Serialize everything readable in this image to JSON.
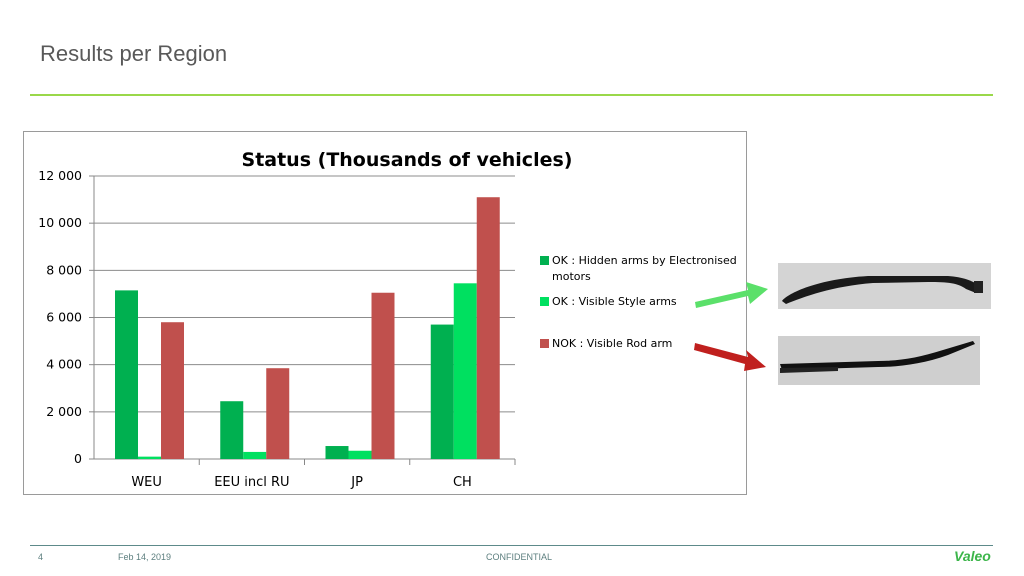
{
  "slide": {
    "title": "Results per Region",
    "page_number": "4",
    "date": "Feb 14, 2019",
    "confidentiality": "CONFIDENTIAL",
    "logo_text": "Valeo",
    "accent_color": "#9ad84a"
  },
  "chart_data": {
    "type": "bar",
    "title": "Status (Thousands of vehicles)",
    "categories": [
      "WEU",
      "EEU incl RU",
      "JP",
      "CH"
    ],
    "ylim": [
      0,
      12000
    ],
    "yticks": [
      "0",
      "2 000",
      "4 000",
      "6 000",
      "8 000",
      "10 000",
      "12 000"
    ],
    "ytick_values": [
      0,
      2000,
      4000,
      6000,
      8000,
      10000,
      12000
    ],
    "grid": true,
    "legend_position": "right",
    "series": [
      {
        "name": "OK : Hidden arms by Electronised motors",
        "color": "#00b050",
        "values": [
          7150,
          2450,
          550,
          5700
        ]
      },
      {
        "name": "OK : Visible Style arms",
        "color": "#00e060",
        "values": [
          100,
          300,
          350,
          7450
        ]
      },
      {
        "name": "NOK : Visible Rod arm",
        "color": "#c0504d",
        "values": [
          5800,
          3850,
          7050,
          11100
        ]
      }
    ]
  },
  "callouts": [
    {
      "arrow_color": "#5be06a",
      "image": "hidden-style-wiper-arm"
    },
    {
      "arrow_color": "#c0201e",
      "image": "rod-wiper-arm"
    }
  ]
}
